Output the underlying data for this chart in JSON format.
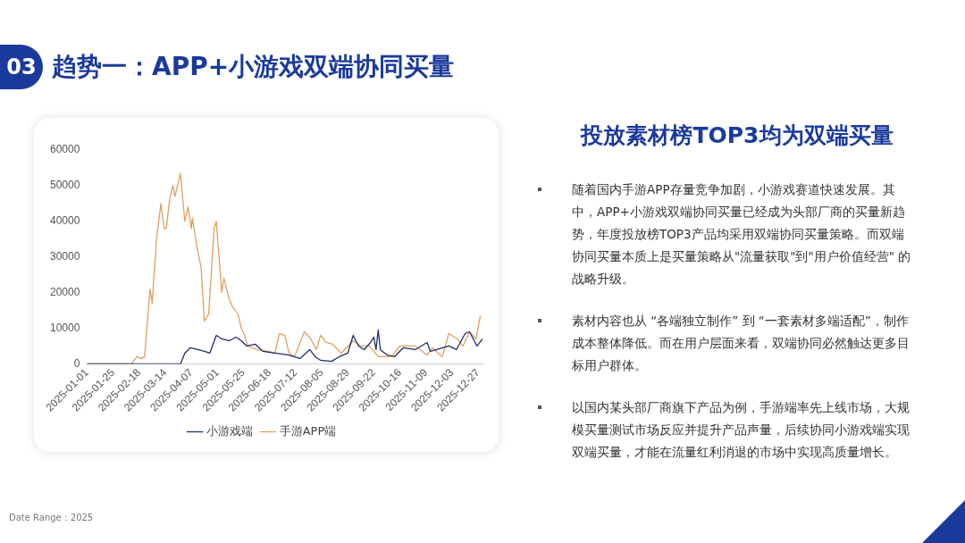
{
  "chart_data": {
    "type": "line",
    "title": "趋势一：APP+小游戏双端协同买量",
    "subtitle": "投放素材榜TOP3均为双端买量",
    "annotations": [
      "03",
      "随着国内手游APP存量竞争加剧，小游戏赛道快速发展。其中，APP+小游戏双端协同买量已经成为头部厂商的买量新趋势，年度投放榜TOP3产品均采用双端协同买量策略。而双端协同买量本质上是买量策略从\"流量获取\"到\"用户价值经营\" 的战略升级。",
      "素材内容也从 “各端独立制作” 到 “一套素材多端适配”，制作成本整体降低。而在用户层面来看，双端协同必然触达更多目标用户群体。",
      "以国内某头部厂商旗下产品为例，手游端率先上线市场，大规模买量测试市场反应并提升产品声量，后续协同小游戏端实现双端买量，才能在流量红利消退的市场中实现高质量增长。",
      "Date Range：2025"
    ],
    "xlim": [
      "2025-01-01",
      "2025-12-31"
    ],
    "xticks": [
      "2025-01-01",
      "2025-01-25",
      "2025-02-18",
      "2025-03-14",
      "2025-04-07",
      "2025-05-01",
      "2025-05-25",
      "2025-06-18",
      "2025-07-12",
      "2025-08-05",
      "2025-08-29",
      "2025-09-22",
      "2025-10-16",
      "2025-11-09",
      "2025-12-03",
      "2025-12-27"
    ],
    "ylim": [
      0,
      60000
    ],
    "yticks": [
      0,
      10000,
      20000,
      30000,
      40000,
      50000,
      60000
    ],
    "grid": false,
    "legend": "bottom",
    "marker": "none",
    "line_style": "solid",
    "series": [
      {
        "name": "小游戏端",
        "color": "#1f2f6b",
        "x": [
          "2025-01-01",
          "2025-03-28",
          "2025-04-01",
          "2025-04-06",
          "2025-04-13",
          "2025-04-19",
          "2025-04-24",
          "2025-04-30",
          "2025-05-05",
          "2025-05-12",
          "2025-05-18",
          "2025-05-23",
          "2025-05-28",
          "2025-06-05",
          "2025-06-12",
          "2025-06-23",
          "2025-07-05",
          "2025-07-16",
          "2025-07-25",
          "2025-07-30",
          "2025-08-04",
          "2025-08-14",
          "2025-08-21",
          "2025-08-29",
          "2025-09-03",
          "2025-09-08",
          "2025-09-13",
          "2025-09-19",
          "2025-09-22",
          "2025-09-24",
          "2025-09-26",
          "2025-09-28",
          "2025-10-04",
          "2025-10-11",
          "2025-10-19",
          "2025-10-30",
          "2025-11-10",
          "2025-11-13",
          "2025-11-19",
          "2025-11-30",
          "2025-12-07",
          "2025-12-15",
          "2025-12-19",
          "2025-12-26",
          "2025-12-31"
        ],
        "values": [
          0,
          0,
          3000,
          4500,
          4000,
          3500,
          3000,
          8000,
          7000,
          6500,
          7500,
          6500,
          5000,
          5500,
          3500,
          3000,
          2500,
          1500,
          4000,
          2000,
          1000,
          700,
          2000,
          3000,
          8000,
          5000,
          4000,
          6000,
          7500,
          4000,
          9500,
          4000,
          2500,
          2000,
          4500,
          4000,
          6000,
          3500,
          4000,
          5000,
          4000,
          8500,
          9000,
          5000,
          7000
        ]
      },
      {
        "name": "手游APP端",
        "color": "#e0a060",
        "x": [
          "2025-01-01",
          "2025-02-11",
          "2025-02-16",
          "2025-02-20",
          "2025-02-23",
          "2025-02-28",
          "2025-03-02",
          "2025-03-06",
          "2025-03-10",
          "2025-03-13",
          "2025-03-15",
          "2025-03-18",
          "2025-03-21",
          "2025-03-23",
          "2025-03-28",
          "2025-04-01",
          "2025-04-04",
          "2025-04-07",
          "2025-04-08",
          "2025-04-12",
          "2025-04-16",
          "2025-04-19",
          "2025-04-23",
          "2025-04-28",
          "2025-04-30",
          "2025-05-05",
          "2025-05-07",
          "2025-05-12",
          "2025-05-15",
          "2025-05-20",
          "2025-05-23",
          "2025-05-26",
          "2025-05-29",
          "2025-06-06",
          "2025-06-17",
          "2025-06-23",
          "2025-06-27",
          "2025-07-02",
          "2025-07-06",
          "2025-07-11",
          "2025-07-20",
          "2025-07-26",
          "2025-07-31",
          "2025-08-04",
          "2025-08-09",
          "2025-08-15",
          "2025-08-23",
          "2025-09-03",
          "2025-09-10",
          "2025-09-18",
          "2025-09-26",
          "2025-10-08",
          "2025-10-16",
          "2025-10-30",
          "2025-11-10",
          "2025-11-15",
          "2025-11-24",
          "2025-11-30",
          "2025-12-08",
          "2025-12-13",
          "2025-12-19",
          "2025-12-25",
          "2025-12-29"
        ],
        "values": [
          0,
          0,
          2000,
          1500,
          2000,
          21000,
          17000,
          35000,
          45000,
          38000,
          38000,
          46000,
          50000,
          47000,
          53500,
          40000,
          44000,
          38000,
          41000,
          33000,
          27000,
          12000,
          14000,
          38000,
          40000,
          20000,
          24000,
          18000,
          16000,
          14000,
          10000,
          8000,
          5000,
          4000,
          3500,
          3000,
          8500,
          8000,
          3000,
          2000,
          9000,
          7000,
          4000,
          8000,
          6000,
          5500,
          3000,
          6500,
          5000,
          5000,
          2000,
          2000,
          5000,
          5000,
          2500,
          4500,
          2000,
          8500,
          7000,
          5000,
          9000,
          7000,
          13500
        ]
      }
    ]
  }
}
